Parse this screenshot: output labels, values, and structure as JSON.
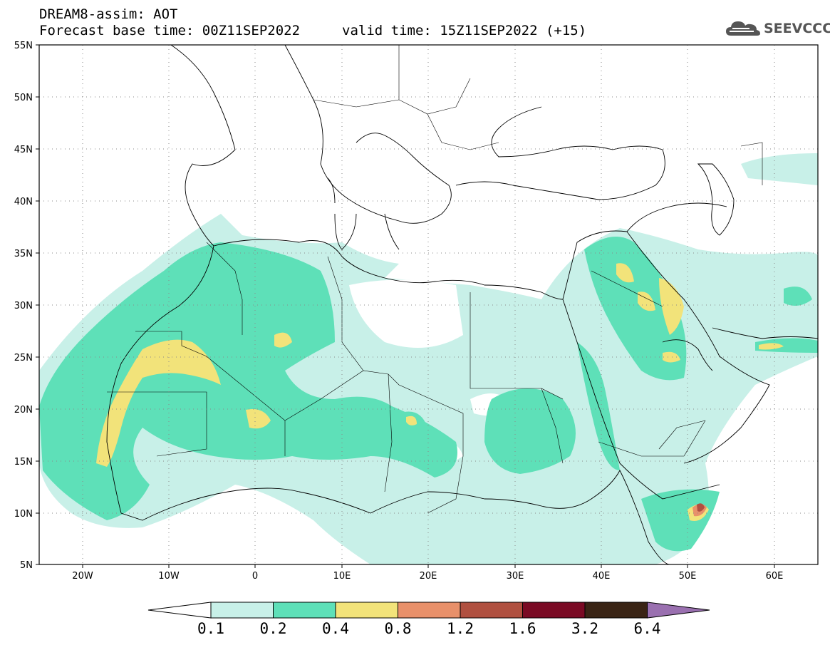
{
  "title": {
    "line1": "DREAM8-assim: AOT",
    "line2": "Forecast base time: 00Z11SEP2022",
    "valid": "valid time: 15Z11SEP2022 (+15)"
  },
  "logo": {
    "text": "SEEVCCC",
    "icon": "cloud-icon"
  },
  "map": {
    "lon_range": [
      -25,
      65
    ],
    "lat_range": [
      5,
      55
    ],
    "lat_labels": [
      "55N",
      "50N",
      "45N",
      "40N",
      "35N",
      "30N",
      "25N",
      "20N",
      "15N",
      "10N",
      "5N"
    ],
    "lon_labels": [
      "20W",
      "10W",
      "0",
      "10E",
      "20E",
      "30E",
      "40E",
      "50E",
      "60E"
    ],
    "grid": "dotted",
    "land_outline_color": "#000000"
  },
  "colorbar": {
    "labels": [
      "0.1",
      "0.2",
      "0.4",
      "0.8",
      "1.2",
      "1.6",
      "3.2",
      "6.4"
    ],
    "colors": [
      "#c8f0e8",
      "#5ee0b8",
      "#f2e37a",
      "#e8906a",
      "#b05040",
      "#7a0a24",
      "#3a2415",
      "#9a70b0"
    ],
    "low_end_color": "#ffffff"
  }
}
